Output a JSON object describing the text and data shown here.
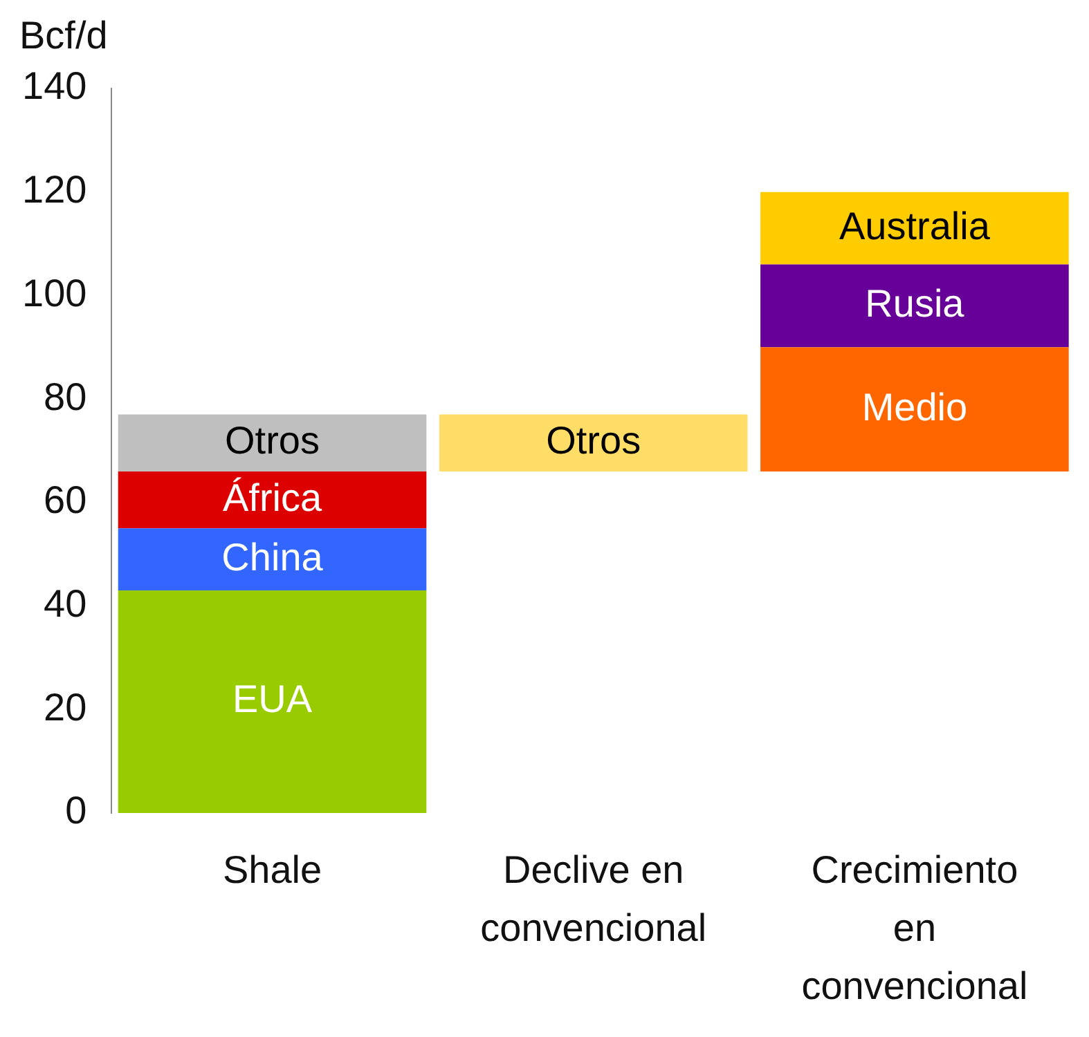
{
  "chart_data": {
    "type": "bar",
    "stacked": true,
    "ylabel": "Bcf/d",
    "categories": [
      "Shale",
      "Declive en convencional",
      "Crecimiento en convencional"
    ],
    "ylim": [
      0,
      140
    ],
    "yticks": [
      0,
      20,
      40,
      60,
      80,
      100,
      120,
      140
    ],
    "grid": false,
    "legend": false,
    "series": [
      {
        "name": "EUA",
        "color": "#99cc00",
        "values": [
          43,
          null,
          null
        ]
      },
      {
        "name": "China",
        "color": "#3366ff",
        "values": [
          12,
          null,
          null
        ]
      },
      {
        "name": "África",
        "color": "#dd0000",
        "values": [
          11,
          null,
          null
        ]
      },
      {
        "name": "Otros",
        "color": "#bfbfbf",
        "colors": [
          "#bfbfbf",
          "#ffdd66",
          null
        ],
        "values": [
          11,
          11,
          null
        ],
        "base": [
          null,
          66,
          null
        ]
      },
      {
        "name": "Medio",
        "color": "#ff6600",
        "values": [
          null,
          null,
          24
        ],
        "base": [
          null,
          null,
          66
        ]
      },
      {
        "name": "Rusia",
        "color": "#660099",
        "values": [
          null,
          null,
          16
        ],
        "base": [
          null,
          null,
          90
        ]
      },
      {
        "name": "Australia",
        "color": "#ffcc00",
        "values": [
          null,
          null,
          14
        ],
        "base": [
          null,
          null,
          106
        ]
      }
    ]
  }
}
